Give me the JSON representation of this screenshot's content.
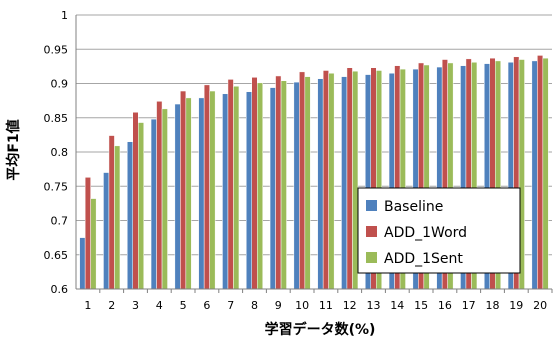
{
  "chart_data": {
    "type": "bar",
    "xlabel": "学習データ数(%)",
    "ylabel": "平均F1値",
    "ylim": [
      0.6,
      1
    ],
    "yticks": [
      "0.6",
      "0.65",
      "0.7",
      "0.75",
      "0.8",
      "0.85",
      "0.9",
      "0.95",
      "1"
    ],
    "grid": true,
    "legend_position": "lower-right",
    "categories": [
      "1",
      "2",
      "3",
      "4",
      "5",
      "6",
      "7",
      "8",
      "9",
      "10",
      "11",
      "12",
      "13",
      "14",
      "15",
      "16",
      "17",
      "18",
      "19",
      "20"
    ],
    "series": [
      {
        "name": "Baseline",
        "color": "#4f81bd",
        "values": [
          0.675,
          0.77,
          0.815,
          0.848,
          0.87,
          0.879,
          0.885,
          0.888,
          0.894,
          0.902,
          0.907,
          0.91,
          0.913,
          0.915,
          0.921,
          0.924,
          0.926,
          0.929,
          0.931,
          0.933
        ]
      },
      {
        "name": "ADD_1Word",
        "color": "#c0504d",
        "values": [
          0.763,
          0.824,
          0.858,
          0.874,
          0.889,
          0.898,
          0.906,
          0.909,
          0.911,
          0.917,
          0.919,
          0.923,
          0.923,
          0.926,
          0.93,
          0.935,
          0.936,
          0.937,
          0.939,
          0.941
        ]
      },
      {
        "name": "ADD_1Sent",
        "color": "#9bbb59",
        "values": [
          0.732,
          0.809,
          0.843,
          0.863,
          0.879,
          0.889,
          0.896,
          0.901,
          0.904,
          0.91,
          0.915,
          0.918,
          0.919,
          0.921,
          0.927,
          0.93,
          0.931,
          0.933,
          0.935,
          0.937
        ]
      }
    ]
  }
}
